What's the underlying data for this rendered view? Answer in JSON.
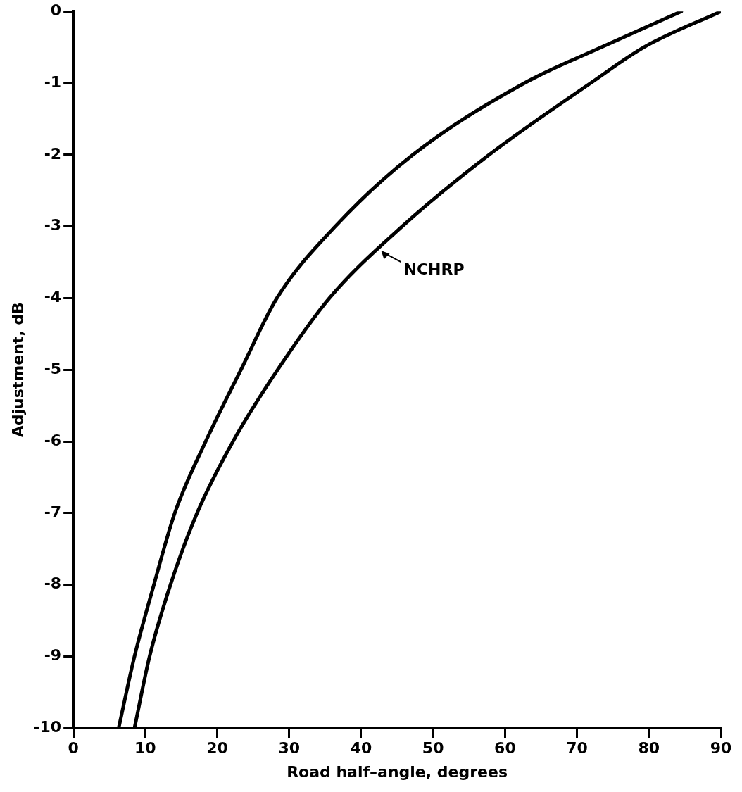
{
  "chart_data": {
    "type": "line",
    "xlabel": "Road half–angle, degrees",
    "ylabel": "Adjustment, dB",
    "xlim": [
      0,
      90
    ],
    "ylim": [
      -10,
      0
    ],
    "xticks": [
      0,
      10,
      20,
      30,
      40,
      50,
      60,
      70,
      80,
      90
    ],
    "yticks": [
      0,
      -1,
      -2,
      -3,
      -4,
      -5,
      -6,
      -7,
      -8,
      -9,
      -10
    ],
    "grid": false,
    "legend": false,
    "marker": "none",
    "line_style": "solid",
    "series": [
      {
        "color": "#000000",
        "x": [
          6.3,
          8.5,
          11.2,
          14.1,
          18.4,
          23.3,
          28.3,
          36.4,
          47.2,
          62.7,
          73.4,
          84.5
        ],
        "values": [
          -10,
          -9,
          -8,
          -7,
          -6,
          -5,
          -4,
          -3,
          -2,
          -1,
          -0.5,
          0
        ]
      },
      {
        "color": "#000000",
        "x": [
          8.5,
          10.6,
          13.5,
          17.2,
          22.2,
          28.4,
          35.6,
          45.7,
          57.8,
          71.9,
          79.3,
          90
        ],
        "values": [
          -10,
          -9,
          -8,
          -7,
          -6,
          -5,
          -4,
          -3,
          -2,
          -1,
          -0.5,
          0
        ]
      }
    ],
    "annotations": [
      {
        "text": "NCHRP",
        "x": 42.4,
        "y": -3.3
      }
    ]
  }
}
